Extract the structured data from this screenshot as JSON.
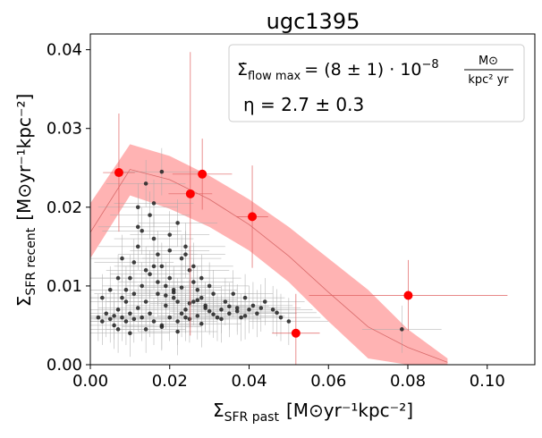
{
  "chart_data": {
    "type": "scatter",
    "title": "ugc1395",
    "xlabel": {
      "main": "Σ",
      "sub": "SFR past",
      "unit": "[M⊙yr⁻¹kpc⁻²]"
    },
    "ylabel": {
      "main": "Σ",
      "sub": "SFR recent",
      "unit": "[M⊙yr⁻¹kpc⁻²]"
    },
    "xlim": [
      0.0,
      0.112
    ],
    "ylim": [
      0.0,
      0.042
    ],
    "xticks": [
      0.0,
      0.02,
      0.04,
      0.06,
      0.08,
      0.1
    ],
    "xtick_labels": [
      "0.00",
      "0.02",
      "0.04",
      "0.06",
      "0.08",
      "0.10"
    ],
    "yticks": [
      0.0,
      0.01,
      0.02,
      0.03,
      0.04
    ],
    "ytick_labels": [
      "0.00",
      "0.01",
      "0.02",
      "0.03",
      "0.04"
    ],
    "annotations": {
      "flow_symbol": "Σ̇",
      "flow_sub": "flow max",
      "flow_value": "= (8 ± 1) · 10",
      "flow_exp": "−8",
      "flow_unit_num": "M⊙",
      "flow_unit_den": "kpc² yr",
      "eta": "η = 2.7 ± 0.3"
    },
    "colors": {
      "band": "#ffb3b3",
      "model_line": "#d96a6a",
      "binned": "#ff0000",
      "pixels": "#222222",
      "pixel_err": "#aaaaaa"
    },
    "model_band": {
      "x": [
        0.0,
        0.01,
        0.02,
        0.03,
        0.04,
        0.05,
        0.06,
        0.07,
        0.08,
        0.09
      ],
      "lower": [
        0.0135,
        0.0215,
        0.0198,
        0.0175,
        0.0145,
        0.0105,
        0.0055,
        0.0008,
        0.0,
        0.0
      ],
      "upper": [
        0.0205,
        0.028,
        0.0265,
        0.024,
        0.021,
        0.0175,
        0.0135,
        0.0095,
        0.0045,
        0.0008
      ]
    },
    "model_line": {
      "x": [
        0.0,
        0.01,
        0.02,
        0.03,
        0.04,
        0.05,
        0.06,
        0.07,
        0.08,
        0.09
      ],
      "y": [
        0.0168,
        0.0248,
        0.0235,
        0.021,
        0.0178,
        0.0138,
        0.0092,
        0.0048,
        0.0022,
        0.0003
      ]
    },
    "binned_points": [
      {
        "x": 0.0072,
        "y": 0.0244,
        "xerr": 0.004,
        "yerr": 0.0075
      },
      {
        "x": 0.0252,
        "y": 0.0217,
        "xerr": 0.0055,
        "yerr": 0.018
      },
      {
        "x": 0.0282,
        "y": 0.0242,
        "xerr": 0.0075,
        "yerr": 0.0045
      },
      {
        "x": 0.0408,
        "y": 0.0188,
        "xerr": 0.004,
        "yerr": 0.0065
      },
      {
        "x": 0.0518,
        "y": 0.004,
        "xerr": 0.006,
        "yerr": 0.005
      },
      {
        "x": 0.0801,
        "y": 0.0088,
        "xerr": 0.025,
        "yerr": 0.0045
      }
    ],
    "pixels": {
      "x": [
        0.002,
        0.003,
        0.004,
        0.005,
        0.006,
        0.006,
        0.007,
        0.007,
        0.008,
        0.008,
        0.009,
        0.009,
        0.01,
        0.01,
        0.011,
        0.011,
        0.012,
        0.012,
        0.013,
        0.013,
        0.014,
        0.014,
        0.015,
        0.015,
        0.016,
        0.016,
        0.017,
        0.017,
        0.018,
        0.018,
        0.019,
        0.019,
        0.02,
        0.02,
        0.021,
        0.021,
        0.022,
        0.022,
        0.023,
        0.023,
        0.024,
        0.024,
        0.025,
        0.025,
        0.026,
        0.026,
        0.027,
        0.027,
        0.028,
        0.028,
        0.029,
        0.03,
        0.031,
        0.032,
        0.033,
        0.034,
        0.035,
        0.036,
        0.037,
        0.038,
        0.039,
        0.04,
        0.041,
        0.042,
        0.044,
        0.046,
        0.048,
        0.05,
        0.003,
        0.005,
        0.007,
        0.009,
        0.011,
        0.013,
        0.015,
        0.017,
        0.019,
        0.021,
        0.023,
        0.025,
        0.027,
        0.029,
        0.031,
        0.033,
        0.035,
        0.037,
        0.039,
        0.043,
        0.047,
        0.0785,
        0.008,
        0.012,
        0.016,
        0.02,
        0.024,
        0.028,
        0.014,
        0.018,
        0.022,
        0.026,
        0.03,
        0.012,
        0.016,
        0.02,
        0.024,
        0.01,
        0.014,
        0.018,
        0.022
      ],
      "y": [
        0.006,
        0.0055,
        0.0065,
        0.0058,
        0.0062,
        0.005,
        0.007,
        0.0045,
        0.0085,
        0.006,
        0.0095,
        0.0055,
        0.011,
        0.0065,
        0.013,
        0.0058,
        0.015,
        0.0072,
        0.017,
        0.006,
        0.012,
        0.008,
        0.019,
        0.0065,
        0.016,
        0.0055,
        0.014,
        0.009,
        0.0125,
        0.005,
        0.01,
        0.0075,
        0.011,
        0.006,
        0.0095,
        0.0085,
        0.008,
        0.0055,
        0.0135,
        0.0065,
        0.015,
        0.007,
        0.012,
        0.0058,
        0.0105,
        0.008,
        0.0095,
        0.0062,
        0.0085,
        0.0052,
        0.0075,
        0.0068,
        0.009,
        0.006,
        0.007,
        0.008,
        0.0065,
        0.009,
        0.0072,
        0.006,
        0.0085,
        0.007,
        0.0075,
        0.0065,
        0.008,
        0.007,
        0.006,
        0.0055,
        0.0085,
        0.0095,
        0.011,
        0.008,
        0.009,
        0.01,
        0.0115,
        0.0105,
        0.0088,
        0.0092,
        0.0098,
        0.0078,
        0.0082,
        0.0072,
        0.0064,
        0.0058,
        0.0074,
        0.0068,
        0.0062,
        0.0072,
        0.0066,
        0.0045,
        0.0135,
        0.0175,
        0.0205,
        0.0165,
        0.014,
        0.011,
        0.023,
        0.0245,
        0.018,
        0.0125,
        0.01,
        0.02,
        0.0125,
        0.0145,
        0.006,
        0.004,
        0.0045,
        0.0048,
        0.0042
      ],
      "xerr": 0.01,
      "yerr": 0.003
    }
  }
}
